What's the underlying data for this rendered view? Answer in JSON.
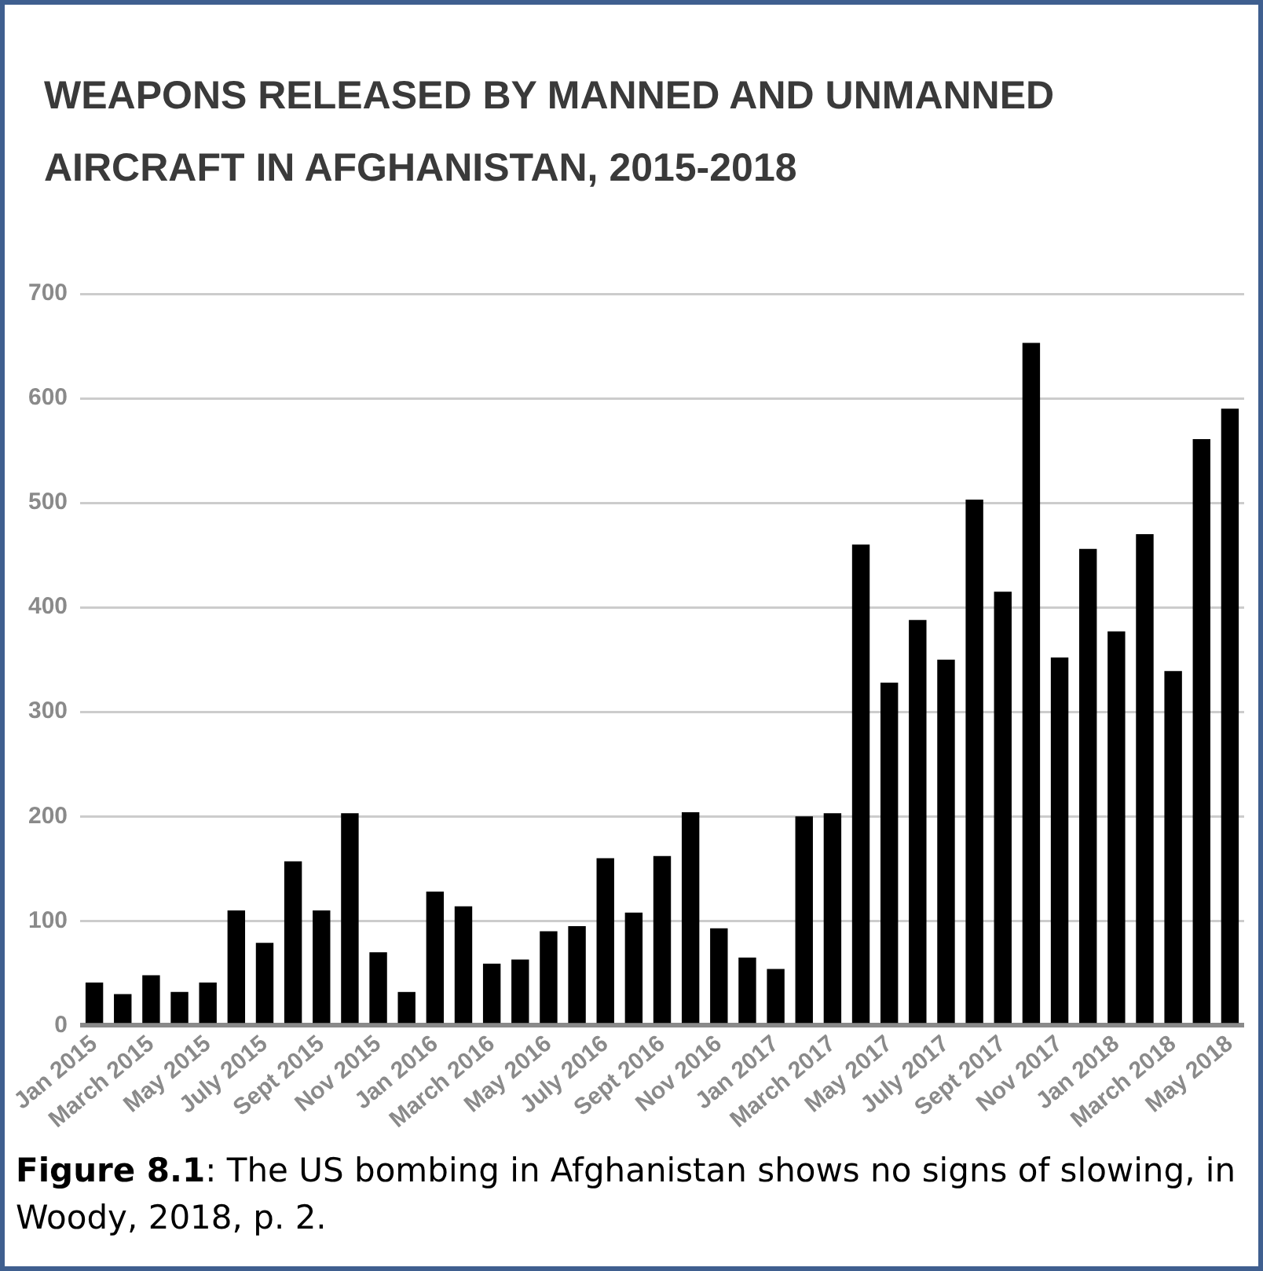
{
  "chart_data": {
    "type": "bar",
    "title": "WEAPONS RELEASED BY MANNED AND UNMANNED AIRCRAFT IN AFGHANISTAN, 2015-2018",
    "categories": [
      "Jan 2015",
      null,
      "March 2015",
      null,
      "May 2015",
      null,
      "July 2015",
      null,
      "Sept 2015",
      null,
      "Nov 2015",
      null,
      "Jan 2016",
      null,
      "March 2016",
      null,
      "May 2016",
      null,
      "July 2016",
      null,
      "Sept 2016",
      null,
      "Nov 2016",
      null,
      "Jan 2017",
      null,
      "March 2017",
      null,
      "May 2017",
      null,
      "July 2017",
      null,
      "Sept 2017",
      null,
      "Nov 2017",
      null,
      "Jan 2018",
      null,
      "March 2018",
      null,
      "May 2018"
    ],
    "values": [
      41,
      30,
      48,
      32,
      41,
      110,
      79,
      157,
      110,
      203,
      70,
      32,
      128,
      114,
      59,
      63,
      90,
      95,
      160,
      108,
      162,
      204,
      93,
      65,
      54,
      200,
      203,
      460,
      328,
      388,
      350,
      503,
      415,
      653,
      352,
      456,
      377,
      470,
      339,
      561,
      590
    ],
    "color": "#000000",
    "ylim": [
      0,
      700
    ],
    "yticks": [
      0,
      100,
      200,
      300,
      400,
      500,
      600,
      700
    ],
    "grid": "y",
    "legend": false,
    "annotations": [
      "Figure 8.1: The US bombing in Afghanistan shows no signs of slowing, in Woody, 2018, p. 2."
    ]
  }
}
